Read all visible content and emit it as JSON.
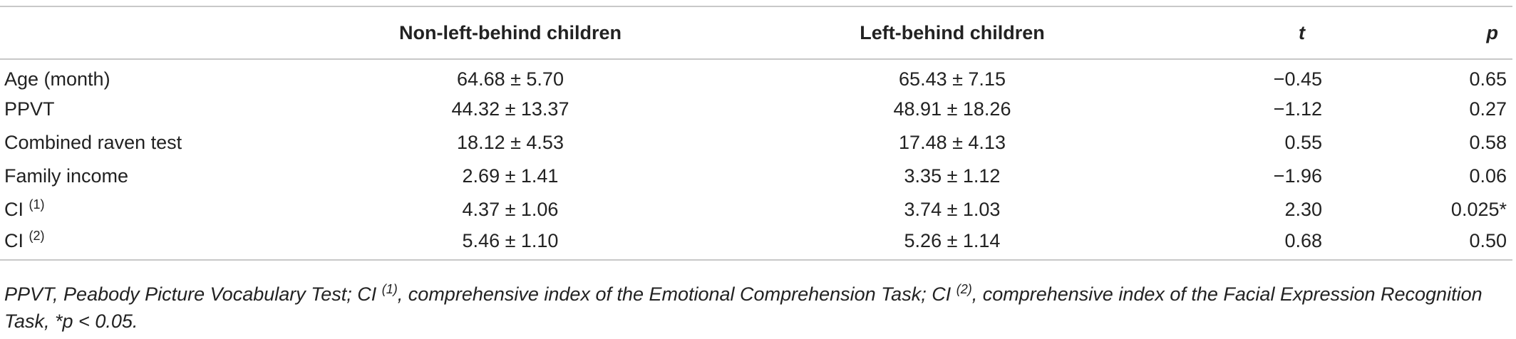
{
  "table": {
    "headers": {
      "label": "",
      "nlb": "Non-left-behind children",
      "lb": "Left-behind children",
      "t": "t",
      "p": "p"
    },
    "rows": [
      {
        "label": "Age (month)",
        "label_sup": "",
        "nlb": "64.68 ± 5.70",
        "lb": "65.43 ± 7.15",
        "t": "−0.45",
        "p": "0.65"
      },
      {
        "label": "PPVT",
        "label_sup": "",
        "nlb": "44.32 ± 13.37",
        "lb": "48.91 ± 18.26",
        "t": "−1.12",
        "p": "0.27"
      },
      {
        "label": "Combined raven test",
        "label_sup": "",
        "nlb": "18.12 ± 4.53",
        "lb": "17.48 ± 4.13",
        "t": "0.55",
        "p": "0.58"
      },
      {
        "label": "Family income",
        "label_sup": "",
        "nlb": "2.69 ± 1.41",
        "lb": "3.35 ± 1.12",
        "t": "−1.96",
        "p": "0.06"
      },
      {
        "label": "CI",
        "label_sup": "(1)",
        "nlb": "4.37 ± 1.06",
        "lb": "3.74 ± 1.03",
        "t": "2.30",
        "p": "0.025*"
      },
      {
        "label": "CI",
        "label_sup": "(2)",
        "nlb": "5.46 ± 1.10",
        "lb": "5.26 ± 1.14",
        "t": "0.68",
        "p": "0.50"
      }
    ]
  },
  "footnote": {
    "part1": "PPVT, Peabody Picture Vocabulary Test; CI ",
    "sup1": "(1)",
    "part2": ", comprehensive index of the Emotional Comprehension Task; CI ",
    "sup2": "(2)",
    "part3": ", comprehensive index of the Facial Expression Recognition Task, *p < 0.05."
  }
}
